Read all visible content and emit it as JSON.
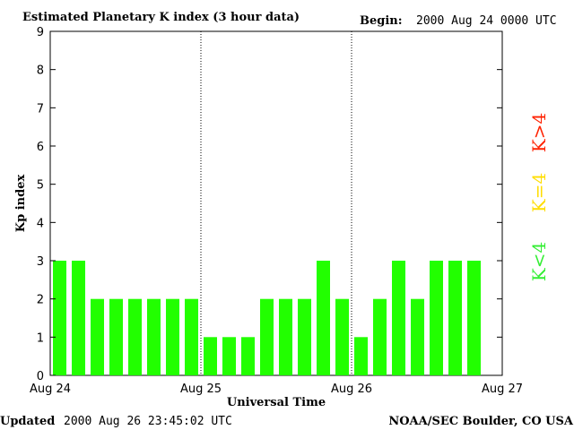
{
  "header": {
    "title": "Estimated Planetary K index (3 hour data)",
    "begin_label": "Begin:",
    "begin_value": "2000 Aug 24 0000 UTC"
  },
  "footer": {
    "updated_label": "Updated",
    "updated_value": "2000 Aug 26 23:45:02 UTC",
    "credit": "NOAA/SEC Boulder, CO USA"
  },
  "legend": {
    "items": [
      {
        "label": "K<4",
        "color": "#33ee33"
      },
      {
        "label": "K=4",
        "color": "#ffdd00"
      },
      {
        "label": "K>4",
        "color": "#ff2200"
      }
    ]
  },
  "colors": {
    "bar_low": "#22ff00",
    "bar_mid": "#ffdd00",
    "bar_high": "#ff2200"
  },
  "chart_data": {
    "type": "bar",
    "xlabel": "Universal Time",
    "ylabel": "Kp index",
    "ylim": [
      0,
      9
    ],
    "yticks": [
      0,
      1,
      2,
      3,
      4,
      5,
      6,
      7,
      8,
      9
    ],
    "xticks": [
      "Aug 24",
      "Aug 25",
      "Aug 26",
      "Aug 27"
    ],
    "x_range": [
      "2000-08-24 00:00 UTC",
      "2000-08-27 00:00 UTC"
    ],
    "interval_hours": 3,
    "grid": "dotted vertical day separators",
    "values": [
      3,
      3,
      2,
      2,
      2,
      2,
      2,
      2,
      1,
      1,
      1,
      2,
      2,
      2,
      3,
      2,
      1,
      2,
      3,
      2,
      3,
      3,
      3
    ]
  }
}
